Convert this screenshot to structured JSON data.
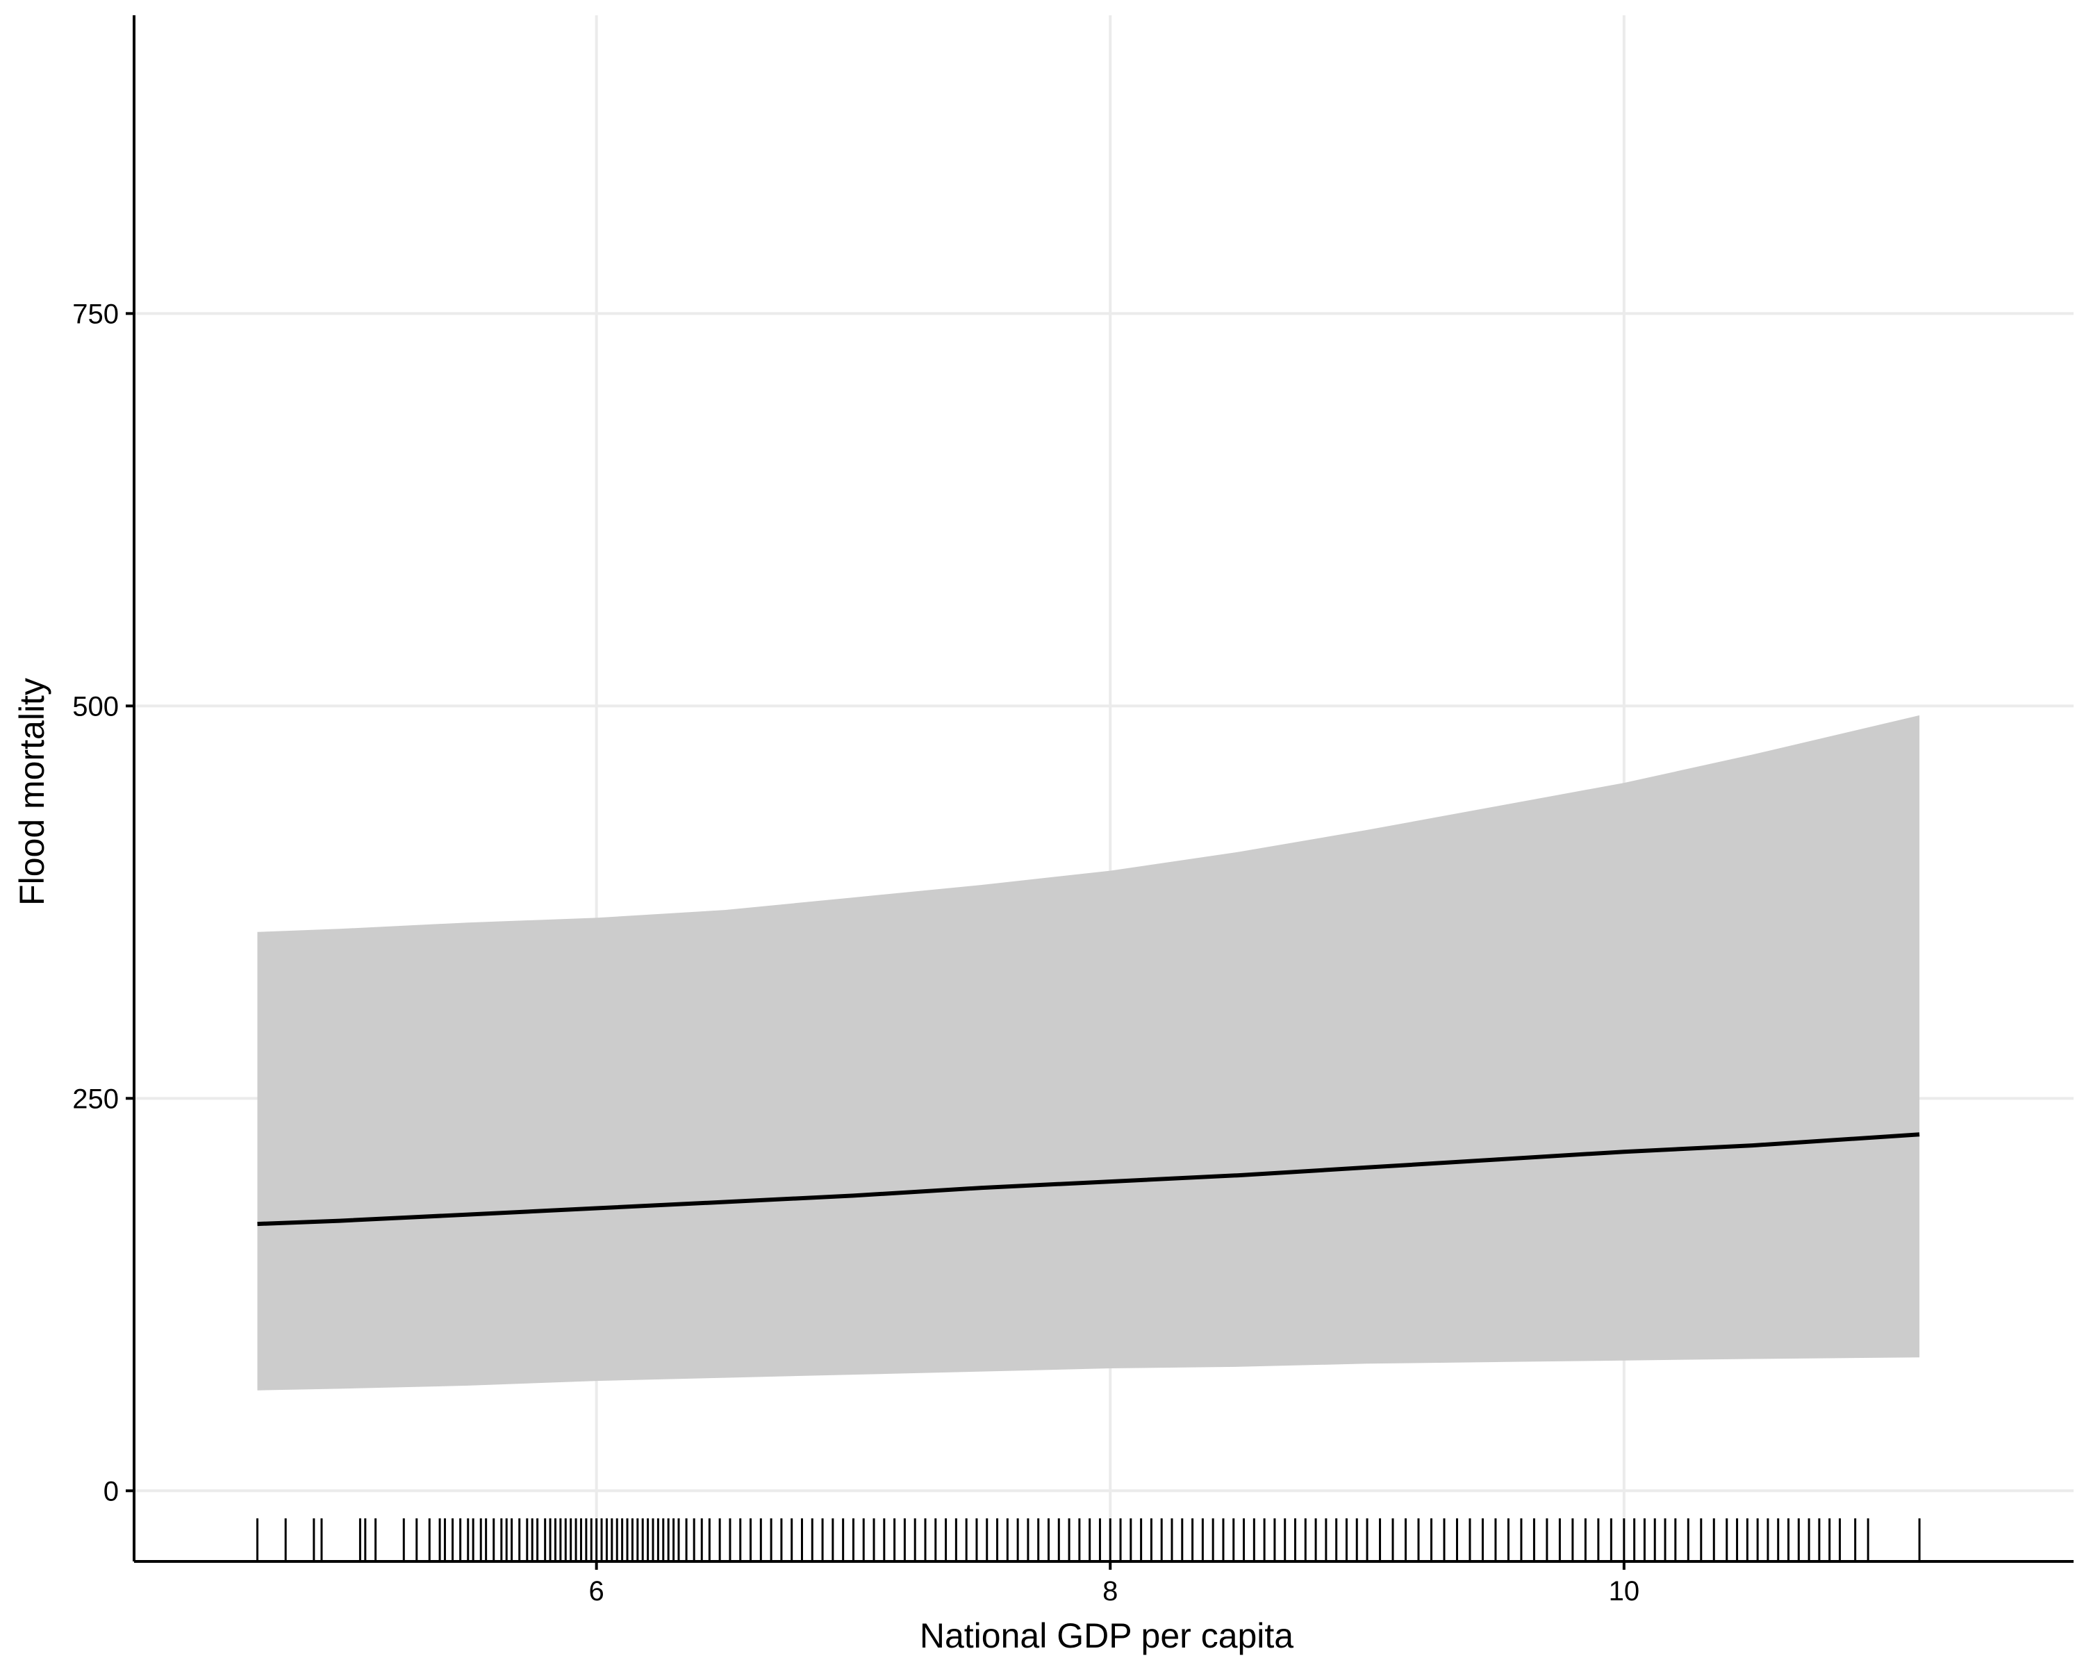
{
  "chart_data": {
    "type": "line",
    "xlabel": "National GDP per capita",
    "ylabel": "Flood mortality",
    "xlim": [
      4.2,
      11.75
    ],
    "ylim": [
      -45,
      940
    ],
    "x_ticks": [
      6,
      8,
      10
    ],
    "x_tick_labels": [
      "6",
      "8",
      "10"
    ],
    "y_ticks": [
      0,
      250,
      500,
      750
    ],
    "y_tick_labels": [
      "0",
      "250",
      "500",
      "750"
    ],
    "grid": true,
    "legend": "none",
    "colors": {
      "line": "#000000",
      "ribbon": "#cccccc",
      "grid": "#ebebeb"
    },
    "series": [
      {
        "role": "fit",
        "x": [
          4.68,
          5.0,
          5.5,
          6.0,
          6.5,
          7.0,
          7.5,
          8.0,
          8.5,
          9.0,
          9.5,
          10.0,
          10.5,
          11.15
        ],
        "y": [
          170,
          172,
          176,
          180,
          184,
          188,
          193,
          197,
          201,
          206,
          211,
          216,
          220,
          227
        ],
        "lower": [
          64,
          65,
          67,
          70,
          72,
          74,
          76,
          78,
          79,
          81,
          82,
          83,
          84,
          85
        ],
        "upper": [
          356,
          358,
          362,
          365,
          370,
          378,
          386,
          395,
          407,
          421,
          436,
          451,
          469,
          494
        ]
      }
    ],
    "rug_x": [
      4.68,
      4.79,
      4.9,
      4.93,
      5.08,
      5.1,
      5.14,
      5.25,
      5.3,
      5.35,
      5.39,
      5.41,
      5.44,
      5.47,
      5.5,
      5.52,
      5.55,
      5.57,
      5.6,
      5.63,
      5.65,
      5.67,
      5.7,
      5.73,
      5.75,
      5.77,
      5.8,
      5.82,
      5.84,
      5.86,
      5.88,
      5.9,
      5.92,
      5.94,
      5.96,
      5.98,
      6.0,
      6.02,
      6.04,
      6.06,
      6.08,
      6.1,
      6.12,
      6.14,
      6.16,
      6.18,
      6.2,
      6.22,
      6.24,
      6.26,
      6.28,
      6.3,
      6.32,
      6.35,
      6.38,
      6.41,
      6.44,
      6.48,
      6.52,
      6.56,
      6.6,
      6.64,
      6.68,
      6.72,
      6.76,
      6.8,
      6.84,
      6.88,
      6.92,
      6.96,
      7.0,
      7.04,
      7.08,
      7.12,
      7.16,
      7.2,
      7.24,
      7.28,
      7.32,
      7.36,
      7.4,
      7.44,
      7.48,
      7.52,
      7.56,
      7.6,
      7.64,
      7.68,
      7.72,
      7.76,
      7.8,
      7.84,
      7.88,
      7.92,
      7.96,
      8.0,
      8.04,
      8.08,
      8.12,
      8.16,
      8.2,
      8.24,
      8.28,
      8.32,
      8.36,
      8.4,
      8.44,
      8.48,
      8.52,
      8.56,
      8.6,
      8.64,
      8.68,
      8.72,
      8.76,
      8.8,
      8.84,
      8.88,
      8.92,
      8.96,
      9.0,
      9.05,
      9.1,
      9.15,
      9.2,
      9.25,
      9.3,
      9.35,
      9.4,
      9.45,
      9.5,
      9.55,
      9.6,
      9.65,
      9.7,
      9.75,
      9.8,
      9.85,
      9.9,
      9.95,
      10.0,
      10.04,
      10.08,
      10.12,
      10.16,
      10.2,
      10.25,
      10.3,
      10.35,
      10.4,
      10.44,
      10.48,
      10.52,
      10.56,
      10.6,
      10.64,
      10.68,
      10.72,
      10.76,
      10.8,
      10.84,
      10.9,
      10.95,
      11.15
    ]
  }
}
